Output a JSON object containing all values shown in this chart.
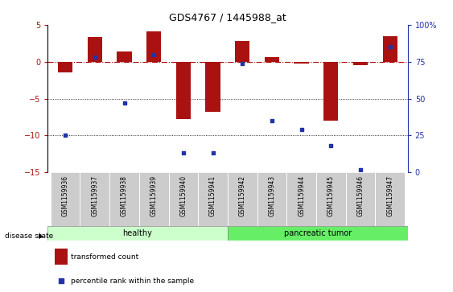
{
  "title": "GDS4767 / 1445988_at",
  "samples": [
    "GSM1159936",
    "GSM1159937",
    "GSM1159938",
    "GSM1159939",
    "GSM1159940",
    "GSM1159941",
    "GSM1159942",
    "GSM1159943",
    "GSM1159944",
    "GSM1159945",
    "GSM1159946",
    "GSM1159947"
  ],
  "transformed_count": [
    -1.5,
    3.3,
    1.4,
    4.1,
    -7.8,
    -6.8,
    2.8,
    0.6,
    -0.2,
    -8.0,
    -0.5,
    3.5
  ],
  "percentile_rank": [
    25,
    78,
    47,
    80,
    13,
    13,
    74,
    35,
    29,
    18,
    2,
    85
  ],
  "ylim_left": [
    -15,
    5
  ],
  "ylim_right": [
    0,
    100
  ],
  "yticks_left": [
    5,
    0,
    -5,
    -10,
    -15
  ],
  "yticks_right": [
    100,
    75,
    50,
    25,
    0
  ],
  "hline_y": 0,
  "dotted_lines": [
    -5,
    -10
  ],
  "bar_color": "#aa1111",
  "dot_color": "#2233aa",
  "healthy_color": "#ccffcc",
  "tumor_color": "#66ee66",
  "n_healthy": 6,
  "n_tumor": 6,
  "disease_state_label": "disease state",
  "healthy_label": "healthy",
  "tumor_label": "pancreatic tumor",
  "legend_bar_label": "transformed count",
  "legend_dot_label": "percentile rank within the sample",
  "bar_width": 0.5
}
